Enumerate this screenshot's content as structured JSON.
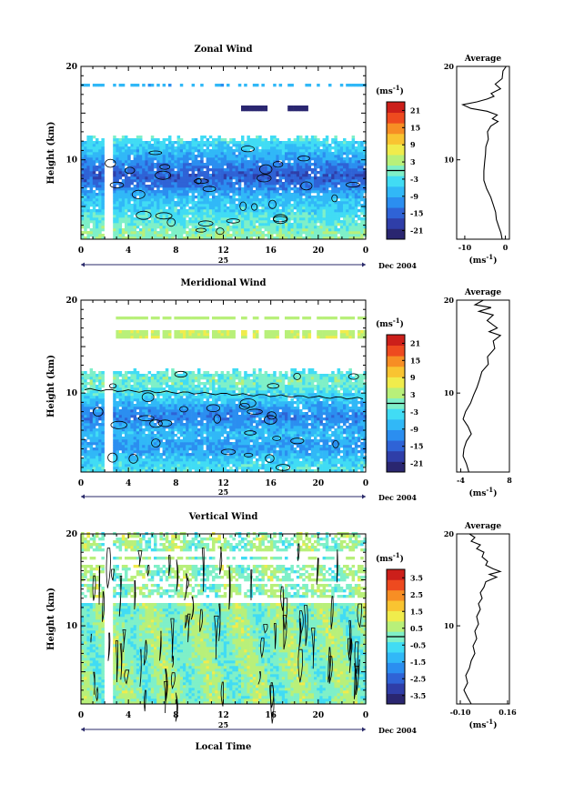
{
  "colors": {
    "cmap": [
      "#2a2670",
      "#2f3ea8",
      "#2f63d6",
      "#2b8ef0",
      "#31b8f7",
      "#41dcf4",
      "#7ff0c8",
      "#b8f07a",
      "#f0ec4c",
      "#f9c431",
      "#f78e24",
      "#ee4a1f",
      "#cc1f1a"
    ],
    "axis": "#000000",
    "timeline": "#2a2a6a"
  },
  "chart_data": [
    {
      "type": "heatmap",
      "title": "Zonal Wind",
      "ylabel": "Height (km)",
      "ylim": [
        1.5,
        20
      ],
      "yticks": [
        "20",
        "10"
      ],
      "xlim": [
        0,
        24
      ],
      "xticks": [
        "0",
        "4",
        "8",
        "12",
        "16",
        "20",
        "0"
      ],
      "day_label": "25",
      "date_label": "Dec 2004",
      "colorbar": {
        "unit": "(ms",
        "unit_sup": "-1",
        "unit_close": ")",
        "tick_labels": [
          "21",
          "15",
          "9",
          "3",
          "-3",
          "-9",
          "-15",
          "-21"
        ],
        "range": [
          -24,
          24
        ]
      },
      "profile": {
        "title": "Average",
        "xlim": [
          -12,
          1
        ],
        "xticks": [
          "-10",
          "0"
        ],
        "xunit": "(ms",
        "xunit_sup": "-1",
        "xunit_close": ")",
        "yticks": [
          "20",
          "10"
        ],
        "points": [
          [
            0.2,
            20
          ],
          [
            -0.6,
            19.5
          ],
          [
            -0.8,
            18.7
          ],
          [
            -2.5,
            18.1
          ],
          [
            -1.2,
            17.6
          ],
          [
            -3.5,
            17.1
          ],
          [
            -2.8,
            16.8
          ],
          [
            -4.5,
            16.5
          ],
          [
            -7.0,
            16.2
          ],
          [
            -10.5,
            15.9
          ],
          [
            -8.5,
            15.5
          ],
          [
            -4.5,
            15.2
          ],
          [
            -2.0,
            14.8
          ],
          [
            -3.2,
            14.4
          ],
          [
            -1.8,
            14.1
          ],
          [
            -3.6,
            13.6
          ],
          [
            -4.4,
            13.0
          ],
          [
            -4.2,
            12.2
          ],
          [
            -4.8,
            11.4
          ],
          [
            -4.9,
            10.6
          ],
          [
            -5.1,
            9.8
          ],
          [
            -5.3,
            8.8
          ],
          [
            -5.3,
            7.8
          ],
          [
            -4.6,
            6.9
          ],
          [
            -3.6,
            6.0
          ],
          [
            -3.0,
            5.2
          ],
          [
            -2.4,
            4.4
          ],
          [
            -2.2,
            3.6
          ],
          [
            -1.6,
            2.8
          ],
          [
            -1.1,
            2.2
          ],
          [
            -0.8,
            1.5
          ]
        ]
      },
      "noise_level": 1.4,
      "field": {
        "base": 2.5,
        "jets": [
          [
            8.2,
            -15,
            2.0
          ],
          [
            11.0,
            -7,
            2.2
          ],
          [
            5.0,
            -6,
            2.5
          ]
        ],
        "top_data": 12.3,
        "sparse_layers": [
          [
            18.0,
            -8,
            0.25,
            "cyan"
          ],
          [
            15.5,
            -22,
            0.3,
            "navy"
          ]
        ]
      }
    },
    {
      "type": "heatmap",
      "title": "Meridional Wind",
      "ylabel": "Height (km)",
      "ylim": [
        1.5,
        20
      ],
      "yticks": [
        "20",
        "10"
      ],
      "xlim": [
        0,
        24
      ],
      "xticks": [
        "0",
        "4",
        "8",
        "12",
        "16",
        "20",
        "0"
      ],
      "day_label": "25",
      "date_label": "Dec 2004",
      "colorbar": {
        "unit": "(ms",
        "unit_sup": "-1",
        "unit_close": ")",
        "tick_labels": [
          "21",
          "15",
          "9",
          "3",
          "-3",
          "-9",
          "-15",
          "-21"
        ],
        "range": [
          -24,
          24
        ]
      },
      "profile": {
        "title": "Average",
        "xlim": [
          -5,
          8
        ],
        "xticks": [
          "-4",
          "8"
        ],
        "xunit": "(ms",
        "xunit_sup": "-1",
        "xunit_close": ")",
        "yticks": [
          "20",
          "10"
        ],
        "points": [
          [
            1.6,
            20
          ],
          [
            -0.5,
            19.5
          ],
          [
            3.5,
            19.2
          ],
          [
            0.5,
            18.8
          ],
          [
            4.0,
            18.4
          ],
          [
            2.5,
            17.8
          ],
          [
            5.0,
            17.0
          ],
          [
            3.0,
            16.6
          ],
          [
            5.8,
            16.2
          ],
          [
            4.0,
            15.6
          ],
          [
            4.4,
            14.8
          ],
          [
            2.6,
            13.9
          ],
          [
            2.8,
            13.1
          ],
          [
            1.2,
            12.3
          ],
          [
            0.6,
            11.4
          ],
          [
            0.0,
            10.6
          ],
          [
            -0.8,
            9.8
          ],
          [
            -1.6,
            8.9
          ],
          [
            -2.8,
            8.0
          ],
          [
            -3.4,
            7.2
          ],
          [
            -2.2,
            6.4
          ],
          [
            -1.4,
            5.6
          ],
          [
            -2.6,
            4.8
          ],
          [
            -3.2,
            4.0
          ],
          [
            -3.4,
            3.2
          ],
          [
            -2.6,
            2.4
          ],
          [
            -2.0,
            1.5
          ]
        ]
      },
      "noise_level": 1.4,
      "field": {
        "base": -3.5,
        "jets": [
          [
            11.3,
            3.5,
            1.0
          ],
          [
            7.5,
            -8,
            1.6
          ],
          [
            4.2,
            -6,
            1.2
          ]
        ],
        "top_data": 12.3,
        "sparse_layers": [
          [
            16.3,
            5,
            0.35,
            "green"
          ],
          [
            18.1,
            4,
            0.2,
            "green"
          ]
        ]
      }
    },
    {
      "type": "heatmap",
      "title": "Vertical Wind",
      "ylabel": "Height (km)",
      "xlabel": "Local Time",
      "ylim": [
        1.5,
        20
      ],
      "yticks": [
        "20",
        "10"
      ],
      "xlim": [
        0,
        24
      ],
      "xticks": [
        "0",
        "4",
        "8",
        "12",
        "16",
        "20",
        "0"
      ],
      "day_label": "25",
      "date_label": "Dec 2004",
      "colorbar": {
        "unit": "(ms",
        "unit_sup": "-1",
        "unit_close": ")",
        "tick_labels": [
          "3.5",
          "2.5",
          "1.5",
          "0.5",
          "-0.5",
          "-1.5",
          "-2.5",
          "-3.5"
        ],
        "range": [
          -4,
          4
        ]
      },
      "profile": {
        "title": "Average",
        "xlim": [
          -0.12,
          0.17
        ],
        "xticks": [
          "-0.10",
          "0.16"
        ],
        "xunit": "(ms",
        "xunit_sup": "-1",
        "xunit_close": ")",
        "yticks": [
          "20",
          "10"
        ],
        "points": [
          [
            -0.05,
            20
          ],
          [
            -0.02,
            19.6
          ],
          [
            -0.04,
            19.2
          ],
          [
            0.01,
            18.8
          ],
          [
            -0.01,
            18.4
          ],
          [
            0.03,
            18.0
          ],
          [
            0.02,
            17.5
          ],
          [
            0.05,
            17.0
          ],
          [
            0.04,
            16.6
          ],
          [
            0.08,
            16.2
          ],
          [
            0.12,
            15.9
          ],
          [
            0.06,
            15.6
          ],
          [
            0.1,
            15.3
          ],
          [
            0.04,
            14.8
          ],
          [
            0.03,
            14.2
          ],
          [
            0.01,
            13.6
          ],
          [
            0.02,
            13.0
          ],
          [
            0.0,
            12.4
          ],
          [
            0.01,
            11.8
          ],
          [
            -0.01,
            11.0
          ],
          [
            0.0,
            10.2
          ],
          [
            -0.02,
            9.4
          ],
          [
            -0.01,
            8.6
          ],
          [
            -0.03,
            7.8
          ],
          [
            -0.02,
            7.0
          ],
          [
            -0.04,
            6.2
          ],
          [
            -0.05,
            5.4
          ],
          [
            -0.07,
            4.6
          ],
          [
            -0.06,
            3.8
          ],
          [
            -0.08,
            3.0
          ],
          [
            -0.06,
            2.2
          ],
          [
            -0.04,
            1.5
          ]
        ]
      },
      "noise_level": 0.55,
      "field": {
        "base": 0.2,
        "jets": [],
        "top_data": 20,
        "sparse_layers": []
      }
    }
  ]
}
